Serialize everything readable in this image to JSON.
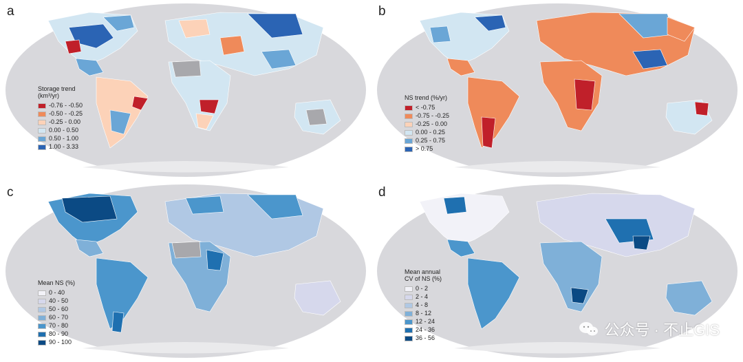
{
  "panels": [
    {
      "label": "a",
      "legend_title": "Storage trend\n(km³/yr)",
      "legend": [
        {
          "label": "-0.76 - -0.50",
          "color": "#c0202a"
        },
        {
          "label": "-0.50 - -0.25",
          "color": "#ef8a5a"
        },
        {
          "label": "-0.25 - 0.00",
          "color": "#fcd2b8"
        },
        {
          "label": "0.00 - 0.50",
          "color": "#d2e6f2"
        },
        {
          "label": "0.50 - 1.00",
          "color": "#6aa6d6"
        },
        {
          "label": "1.00 - 3.33",
          "color": "#2b64b4"
        }
      ]
    },
    {
      "label": "b",
      "legend_title": "NS trend (%/yr)",
      "legend": [
        {
          "label": "< -0.75",
          "color": "#c0202a"
        },
        {
          "label": "-0.75 - -0.25",
          "color": "#ef8a5a"
        },
        {
          "label": "-0.25 - 0.00",
          "color": "#fcd2b8"
        },
        {
          "label": "0.00 - 0.25",
          "color": "#d2e6f2"
        },
        {
          "label": "0.25 - 0.75",
          "color": "#6aa6d6"
        },
        {
          "label": "> 0.75",
          "color": "#2b64b4"
        }
      ]
    },
    {
      "label": "c",
      "legend_title": "Mean NS (%)",
      "legend": [
        {
          "label": "0 - 40",
          "color": "#f2f2f8"
        },
        {
          "label": "40 - 50",
          "color": "#d6d8ec"
        },
        {
          "label": "50 - 60",
          "color": "#b0c8e4"
        },
        {
          "label": "60 - 70",
          "color": "#7fb0d8"
        },
        {
          "label": "70 - 80",
          "color": "#4b96cc"
        },
        {
          "label": "80 - 90",
          "color": "#1f70b0"
        },
        {
          "label": "90 - 100",
          "color": "#0b4a84"
        }
      ]
    },
    {
      "label": "d",
      "legend_title": "Mean annual\nCV of NS (%)",
      "legend": [
        {
          "label": "0 - 2",
          "color": "#f2f2f8"
        },
        {
          "label": "2 - 4",
          "color": "#d6d8ec"
        },
        {
          "label": "4 - 8",
          "color": "#b0c8e4"
        },
        {
          "label": "8 - 12",
          "color": "#7fb0d8"
        },
        {
          "label": "12 - 24",
          "color": "#4b96cc"
        },
        {
          "label": "24 - 36",
          "color": "#1f70b0"
        },
        {
          "label": "36 - 56",
          "color": "#0b4a84"
        }
      ]
    }
  ],
  "watermark": "公众号 · 不止GIS",
  "colors": {
    "ocean": "#d8d8dc",
    "no_data": "#a8a8ac",
    "polar": "#eaeaec"
  }
}
